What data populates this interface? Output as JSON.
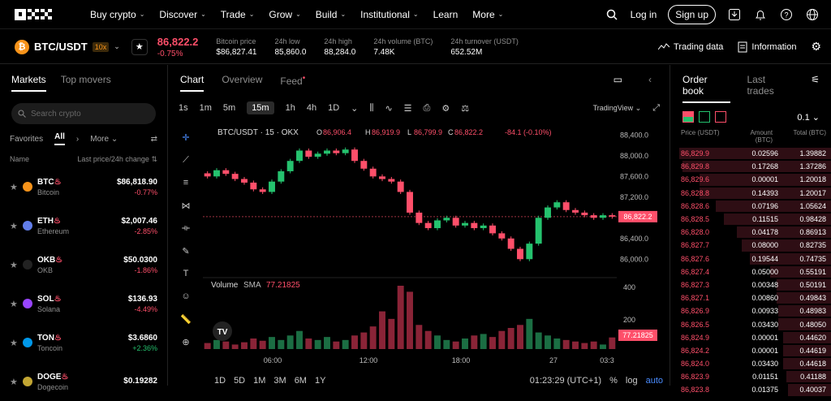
{
  "nav": {
    "links": [
      "Buy crypto",
      "Discover",
      "Trade",
      "Grow",
      "Build",
      "Institutional",
      "Learn",
      "More"
    ],
    "login": "Log in",
    "signup": "Sign up"
  },
  "ticker": {
    "pair": "BTC/USDT",
    "leverage": "10x",
    "price": "86,822.2",
    "change": "-0.75%",
    "stats": [
      {
        "label": "Bitcoin price",
        "value": "$86,827.41"
      },
      {
        "label": "24h low",
        "value": "85,860.0"
      },
      {
        "label": "24h high",
        "value": "88,284.0"
      },
      {
        "label": "24h volume (BTC)",
        "value": "7.48K"
      },
      {
        "label": "24h turnover (USDT)",
        "value": "652.52M"
      }
    ],
    "trading_data": "Trading data",
    "information": "Information"
  },
  "sidebar": {
    "tabs": [
      "Markets",
      "Top movers"
    ],
    "search_placeholder": "Search crypto",
    "filters": {
      "favorites": "Favorites",
      "all": "All",
      "more": "More"
    },
    "col_name": "Name",
    "col_price": "Last price/24h change",
    "markets": [
      {
        "symbol": "BTC",
        "name": "Bitcoin",
        "price": "$86,818.90",
        "change": "-0.77%",
        "color": "#f7931a",
        "dir": "neg"
      },
      {
        "symbol": "ETH",
        "name": "Ethereum",
        "price": "$2,007.46",
        "change": "-2.85%",
        "color": "#627eea",
        "dir": "neg"
      },
      {
        "symbol": "OKB",
        "name": "OKB",
        "price": "$50.0300",
        "change": "-1.86%",
        "color": "#222",
        "dir": "neg"
      },
      {
        "symbol": "SOL",
        "name": "Solana",
        "price": "$136.93",
        "change": "-4.49%",
        "color": "#9945ff",
        "dir": "neg"
      },
      {
        "symbol": "TON",
        "name": "Toncoin",
        "price": "$3.6860",
        "change": "+2.36%",
        "color": "#0098ea",
        "dir": "pos"
      },
      {
        "symbol": "DOGE",
        "name": "Dogecoin",
        "price": "$0.19282",
        "change": "",
        "color": "#c2a633",
        "dir": "neg"
      }
    ]
  },
  "chart": {
    "tabs": [
      "Chart",
      "Overview",
      "Feed"
    ],
    "intervals": [
      "1s",
      "1m",
      "5m",
      "15m",
      "1h",
      "4h",
      "1D"
    ],
    "active_interval": "15m",
    "view": "TradingView",
    "legend_title": "BTC/USDT · 15 · OKX",
    "ohlc": {
      "o": "86,906.4",
      "h": "86,919.9",
      "l": "86,799.9",
      "c": "86,822.2",
      "chg": "-84.1 (-0.10%)"
    },
    "volume_label": "Volume",
    "sma_label": "SMA",
    "sma_value": "77.21825",
    "price_tag": "86,822.2",
    "volume_tag": "77.21825",
    "y_ticks": [
      "88,400.0",
      "88,000.0",
      "87,600.0",
      "87,200.0",
      "86,400.0",
      "86,000.0"
    ],
    "vol_ticks": [
      "400",
      "200"
    ],
    "x_ticks": [
      "06:00",
      "12:00",
      "18:00",
      "27",
      "03:3"
    ],
    "ranges": [
      "1D",
      "5D",
      "1M",
      "3M",
      "6M",
      "1Y"
    ],
    "time": "01:23:29 (UTC+1)",
    "pct": "%",
    "log": "log",
    "auto": "auto"
  },
  "chart_data": {
    "type": "line",
    "title": "BTC/USDT · 15 · OKX",
    "ylim": [
      85800,
      88500
    ],
    "close": [
      87600,
      87720,
      87650,
      87550,
      87480,
      87350,
      87300,
      87500,
      87700,
      87900,
      88100,
      87980,
      88040,
      88100,
      88050,
      88120,
      87900,
      87750,
      87600,
      87550,
      87500,
      87300,
      86900,
      86700,
      86600,
      86750,
      86800,
      86650,
      86700,
      86600,
      86650,
      86500,
      86400,
      86200,
      86000,
      86300,
      86800,
      87000,
      87100,
      86950,
      86900,
      86850,
      86800,
      86850,
      86822
    ],
    "volume": [
      40,
      60,
      50,
      30,
      45,
      70,
      55,
      80,
      60,
      90,
      120,
      70,
      60,
      80,
      50,
      60,
      90,
      110,
      150,
      250,
      200,
      420,
      380,
      160,
      120,
      90,
      60,
      50,
      70,
      90,
      100,
      80,
      120,
      140,
      160,
      200,
      110,
      90,
      70,
      60,
      50,
      40,
      50,
      30,
      77
    ]
  },
  "orderbook": {
    "tabs": [
      "Order book",
      "Last trades"
    ],
    "step": "0.1",
    "headers": {
      "price": "Price (USDT)",
      "amount": "Amount (BTC)",
      "total": "Total (BTC)"
    },
    "asks": [
      {
        "p": "86,829.9",
        "a": "0.02596",
        "t": "1.39882",
        "f": 0.95
      },
      {
        "p": "86,829.8",
        "a": "0.17268",
        "t": "1.37286",
        "f": 0.93
      },
      {
        "p": "86,829.6",
        "a": "0.00001",
        "t": "1.20018",
        "f": 0.82
      },
      {
        "p": "86,828.8",
        "a": "0.14393",
        "t": "1.20017",
        "f": 0.82
      },
      {
        "p": "86,828.6",
        "a": "0.07196",
        "t": "1.05624",
        "f": 0.72
      },
      {
        "p": "86,828.5",
        "a": "0.11515",
        "t": "0.98428",
        "f": 0.67
      },
      {
        "p": "86,828.0",
        "a": "0.04178",
        "t": "0.86913",
        "f": 0.59
      },
      {
        "p": "86,827.7",
        "a": "0.08000",
        "t": "0.82735",
        "f": 0.56
      },
      {
        "p": "86,827.6",
        "a": "0.19544",
        "t": "0.74735",
        "f": 0.51
      },
      {
        "p": "86,827.4",
        "a": "0.05000",
        "t": "0.55191",
        "f": 0.38
      },
      {
        "p": "86,827.3",
        "a": "0.00348",
        "t": "0.50191",
        "f": 0.34
      },
      {
        "p": "86,827.1",
        "a": "0.00860",
        "t": "0.49843",
        "f": 0.34
      },
      {
        "p": "86,826.9",
        "a": "0.00933",
        "t": "0.48983",
        "f": 0.33
      },
      {
        "p": "86,826.5",
        "a": "0.03430",
        "t": "0.48050",
        "f": 0.33
      },
      {
        "p": "86,824.9",
        "a": "0.00001",
        "t": "0.44620",
        "f": 0.3
      },
      {
        "p": "86,824.2",
        "a": "0.00001",
        "t": "0.44619",
        "f": 0.3
      },
      {
        "p": "86,824.0",
        "a": "0.03430",
        "t": "0.44618",
        "f": 0.3
      },
      {
        "p": "86,823.9",
        "a": "0.01151",
        "t": "0.41188",
        "f": 0.28
      },
      {
        "p": "86,823.8",
        "a": "0.01375",
        "t": "0.40037",
        "f": 0.27
      }
    ]
  }
}
